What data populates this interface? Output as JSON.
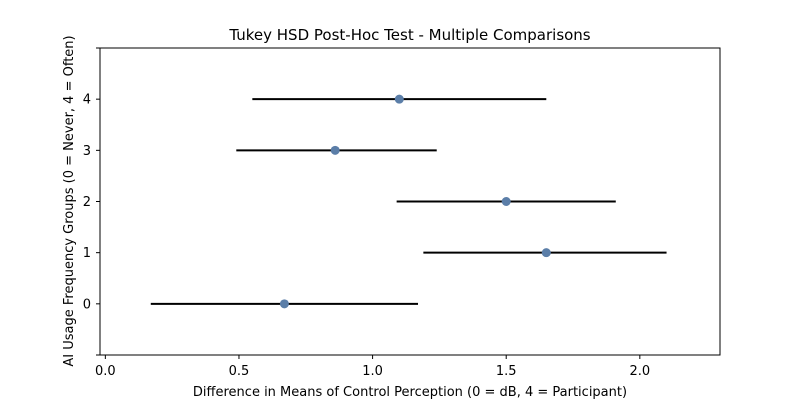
{
  "chart_data": {
    "type": "errorbar",
    "title": "Tukey HSD Post-Hoc Test - Multiple Comparisons",
    "xlabel": "Difference in Means of Control Perception (0 = dB, 4 = Participant)",
    "ylabel": "AI Usage Frequency Groups (0 = Never, 4 = Often)",
    "xlim": [
      -0.02,
      2.3
    ],
    "ylim": [
      -1,
      5
    ],
    "x_ticks": [
      0.0,
      0.5,
      1.0,
      1.5,
      2.0
    ],
    "x_tick_labels": [
      "0.0",
      "0.5",
      "1.0",
      "1.5",
      "2.0"
    ],
    "y_ticks": [
      0,
      1,
      2,
      3,
      4
    ],
    "y_tick_labels": [
      "0",
      "1",
      "2",
      "3",
      "4"
    ],
    "grid": false,
    "marker_color": "#5b7ea8",
    "line_color": "#000000",
    "points": [
      {
        "group": 0,
        "mean": 0.67,
        "lower": 0.17,
        "upper": 1.17
      },
      {
        "group": 1,
        "mean": 1.65,
        "lower": 1.19,
        "upper": 2.1
      },
      {
        "group": 2,
        "mean": 1.5,
        "lower": 1.09,
        "upper": 1.91
      },
      {
        "group": 3,
        "mean": 0.86,
        "lower": 0.49,
        "upper": 1.24
      },
      {
        "group": 4,
        "mean": 1.1,
        "lower": 0.55,
        "upper": 1.65
      }
    ]
  }
}
